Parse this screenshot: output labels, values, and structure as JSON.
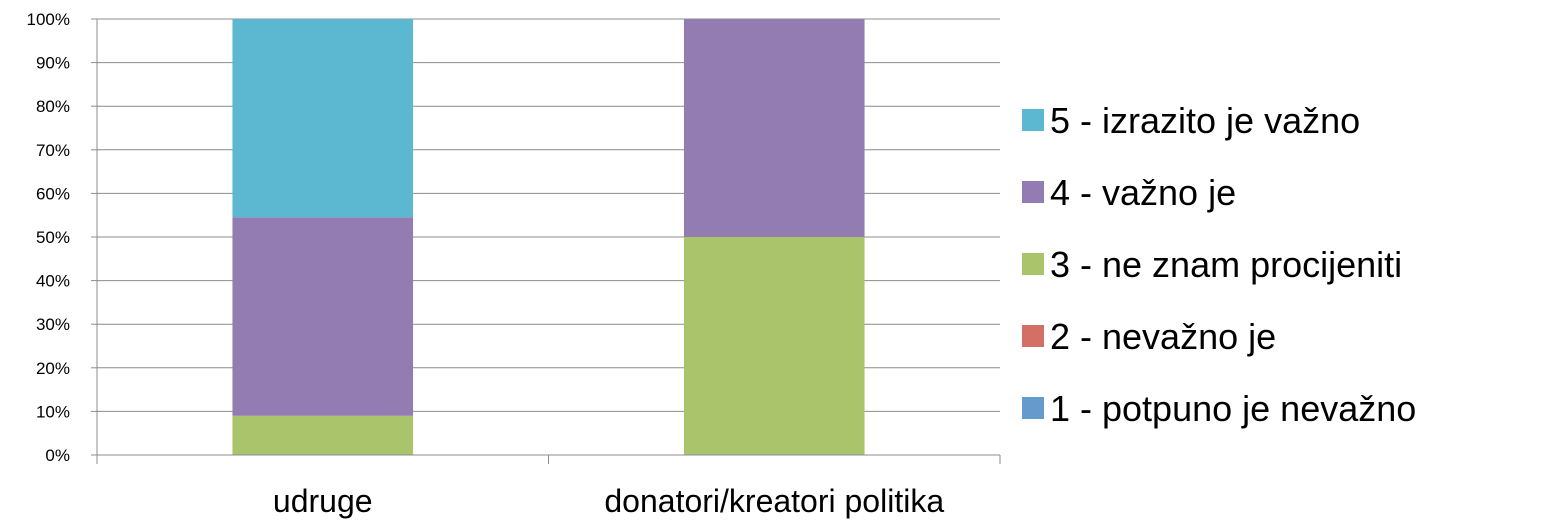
{
  "chart_data": {
    "type": "bar",
    "stacked": true,
    "percent_stacked": true,
    "categories": [
      "udruge",
      "donatori/kreatori politika"
    ],
    "series": [
      {
        "name": "1 - potpuno je nevažno",
        "color": "#6699CC",
        "values": [
          0,
          0
        ]
      },
      {
        "name": "2 - nevažno je",
        "color": "#D36F64",
        "values": [
          0,
          0
        ]
      },
      {
        "name": "3 - ne znam procijeniti",
        "color": "#A9C46A",
        "values": [
          9,
          50
        ]
      },
      {
        "name": "4 - važno je",
        "color": "#937CB2",
        "values": [
          45.5,
          50
        ]
      },
      {
        "name": "5 - izrazito je važno",
        "color": "#5CB8D1",
        "values": [
          45.5,
          0
        ]
      }
    ],
    "yticks": [
      "0%",
      "10%",
      "20%",
      "30%",
      "40%",
      "50%",
      "60%",
      "70%",
      "80%",
      "90%",
      "100%"
    ],
    "ylim": [
      0,
      100
    ],
    "grid": true,
    "legend_position": "right",
    "legend_order": [
      "5 - izrazito je važno",
      "4 - važno je",
      "3 - ne znam procijeniti",
      "2 - nevažno je",
      "1 - potpuno je nevažno"
    ],
    "title": "",
    "xlabel": "",
    "ylabel": ""
  }
}
